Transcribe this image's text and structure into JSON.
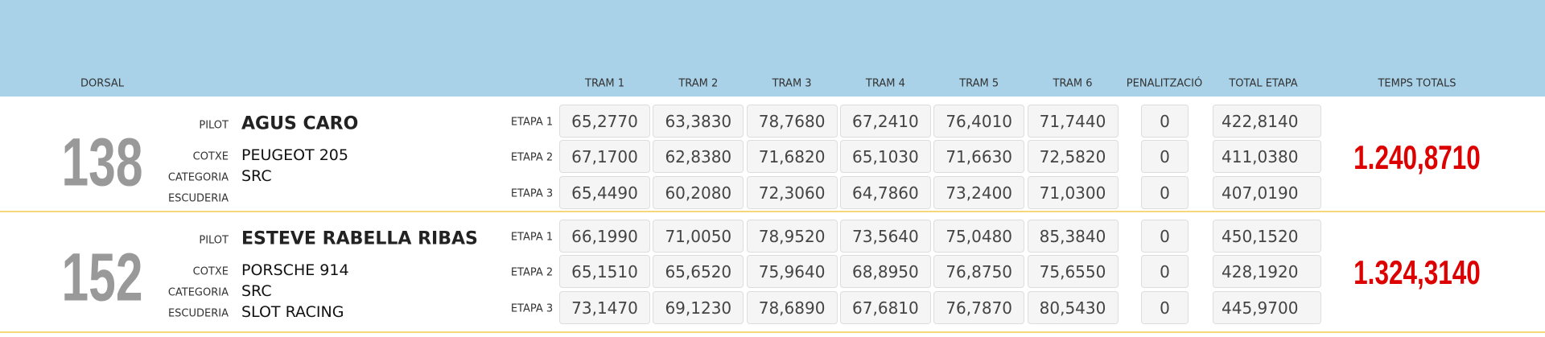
{
  "header": {
    "dorsal": "DORSAL",
    "trams": [
      "TRAM 1",
      "TRAM 2",
      "TRAM 3",
      "TRAM 4",
      "TRAM 5",
      "TRAM 6"
    ],
    "penalty": "PENALITZACIÓ",
    "total": "TOTAL ETAPA",
    "temps_totals": "TEMPS TOTALS"
  },
  "entries": [
    {
      "dorsal": "138",
      "pilot_label": "PILOT",
      "pilot": "AGUS CARO",
      "cotxe_label": "COTXE",
      "cotxe": "PEUGEOT 205",
      "categoria_label": "CATEGORIA",
      "categoria": "SRC",
      "escuderia_label": "ESCUDERIA",
      "stages": [
        {
          "label": "ETAPA 1",
          "trams": [
            "65,2770",
            "63,3830",
            "78,7680",
            "67,2410",
            "76,4010",
            "71,7440"
          ],
          "penalty": "0",
          "total": "422,8140"
        },
        {
          "label": "ETAPA 2",
          "trams": [
            "67,1700",
            "62,8380",
            "71,6820",
            "65,1030",
            "71,6630",
            "72,5820"
          ],
          "penalty": "0",
          "total": "411,0380"
        },
        {
          "label": "ETAPA 3",
          "trams": [
            "65,4490",
            "60,2080",
            "72,3060",
            "64,7860",
            "73,2400",
            "71,0300"
          ],
          "penalty": "0",
          "total": "407,0190"
        }
      ],
      "temps_totals": "1.240,8710"
    },
    {
      "dorsal": "152",
      "pilot_label": "PILOT",
      "pilot": "ESTEVE RABELLA RIBAS",
      "cotxe_label": "COTXE",
      "cotxe": "PORSCHE 914",
      "categoria_label": "CATEGORIA",
      "categoria": "SRC",
      "escuderia_label": "ESCUDERIA",
      "escuderia": "SLOT RACING",
      "stages": [
        {
          "label": "ETAPA 1",
          "trams": [
            "66,1990",
            "71,0050",
            "78,9520",
            "73,5640",
            "75,0480",
            "85,3840"
          ],
          "penalty": "0",
          "total": "450,1520"
        },
        {
          "label": "ETAPA 2",
          "trams": [
            "65,1510",
            "65,6520",
            "75,9640",
            "68,8950",
            "76,8750",
            "75,6550"
          ],
          "penalty": "0",
          "total": "428,1920"
        },
        {
          "label": "ETAPA 3",
          "trams": [
            "73,1470",
            "69,1230",
            "78,6890",
            "67,6810",
            "76,7870",
            "80,5430"
          ],
          "penalty": "0",
          "total": "445,9700"
        }
      ],
      "temps_totals": "1.324,3140"
    }
  ]
}
